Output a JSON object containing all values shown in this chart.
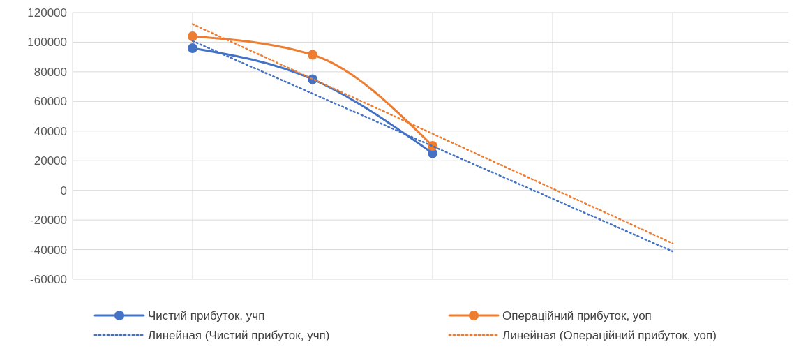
{
  "chart_data": {
    "type": "line",
    "categories": [
      null,
      null,
      null,
      null,
      null,
      null,
      null
    ],
    "ylim": [
      -60000,
      120000
    ],
    "yticks": [
      -60000,
      -40000,
      -20000,
      0,
      20000,
      40000,
      60000,
      80000,
      100000,
      120000
    ],
    "grid": true,
    "legend": "bottom",
    "series": [
      {
        "name": "Чистий прибуток, учп",
        "color": "#4472c4",
        "marker": "circle",
        "line_style": "solid",
        "values": [
          null,
          96000,
          75000,
          25000,
          null,
          null,
          null
        ]
      },
      {
        "name": "Операційний прибуток, уоп",
        "color": "#ed7d31",
        "marker": "circle",
        "line_style": "solid",
        "values": [
          null,
          104000,
          91500,
          30000,
          null,
          null,
          null
        ]
      },
      {
        "name": "Линейная (Чистий прибуток, учп)",
        "color": "#4472c4",
        "marker": "none",
        "line_style": "dotted",
        "values": [
          null,
          100800,
          65300,
          29800,
          -5700,
          -41200,
          null
        ]
      },
      {
        "name": "Линейная (Операційний прибуток, уоп)",
        "color": "#ed7d31",
        "marker": "none",
        "line_style": "dotted",
        "values": [
          null,
          112200,
          75200,
          38200,
          1200,
          -35800,
          null
        ]
      }
    ]
  }
}
